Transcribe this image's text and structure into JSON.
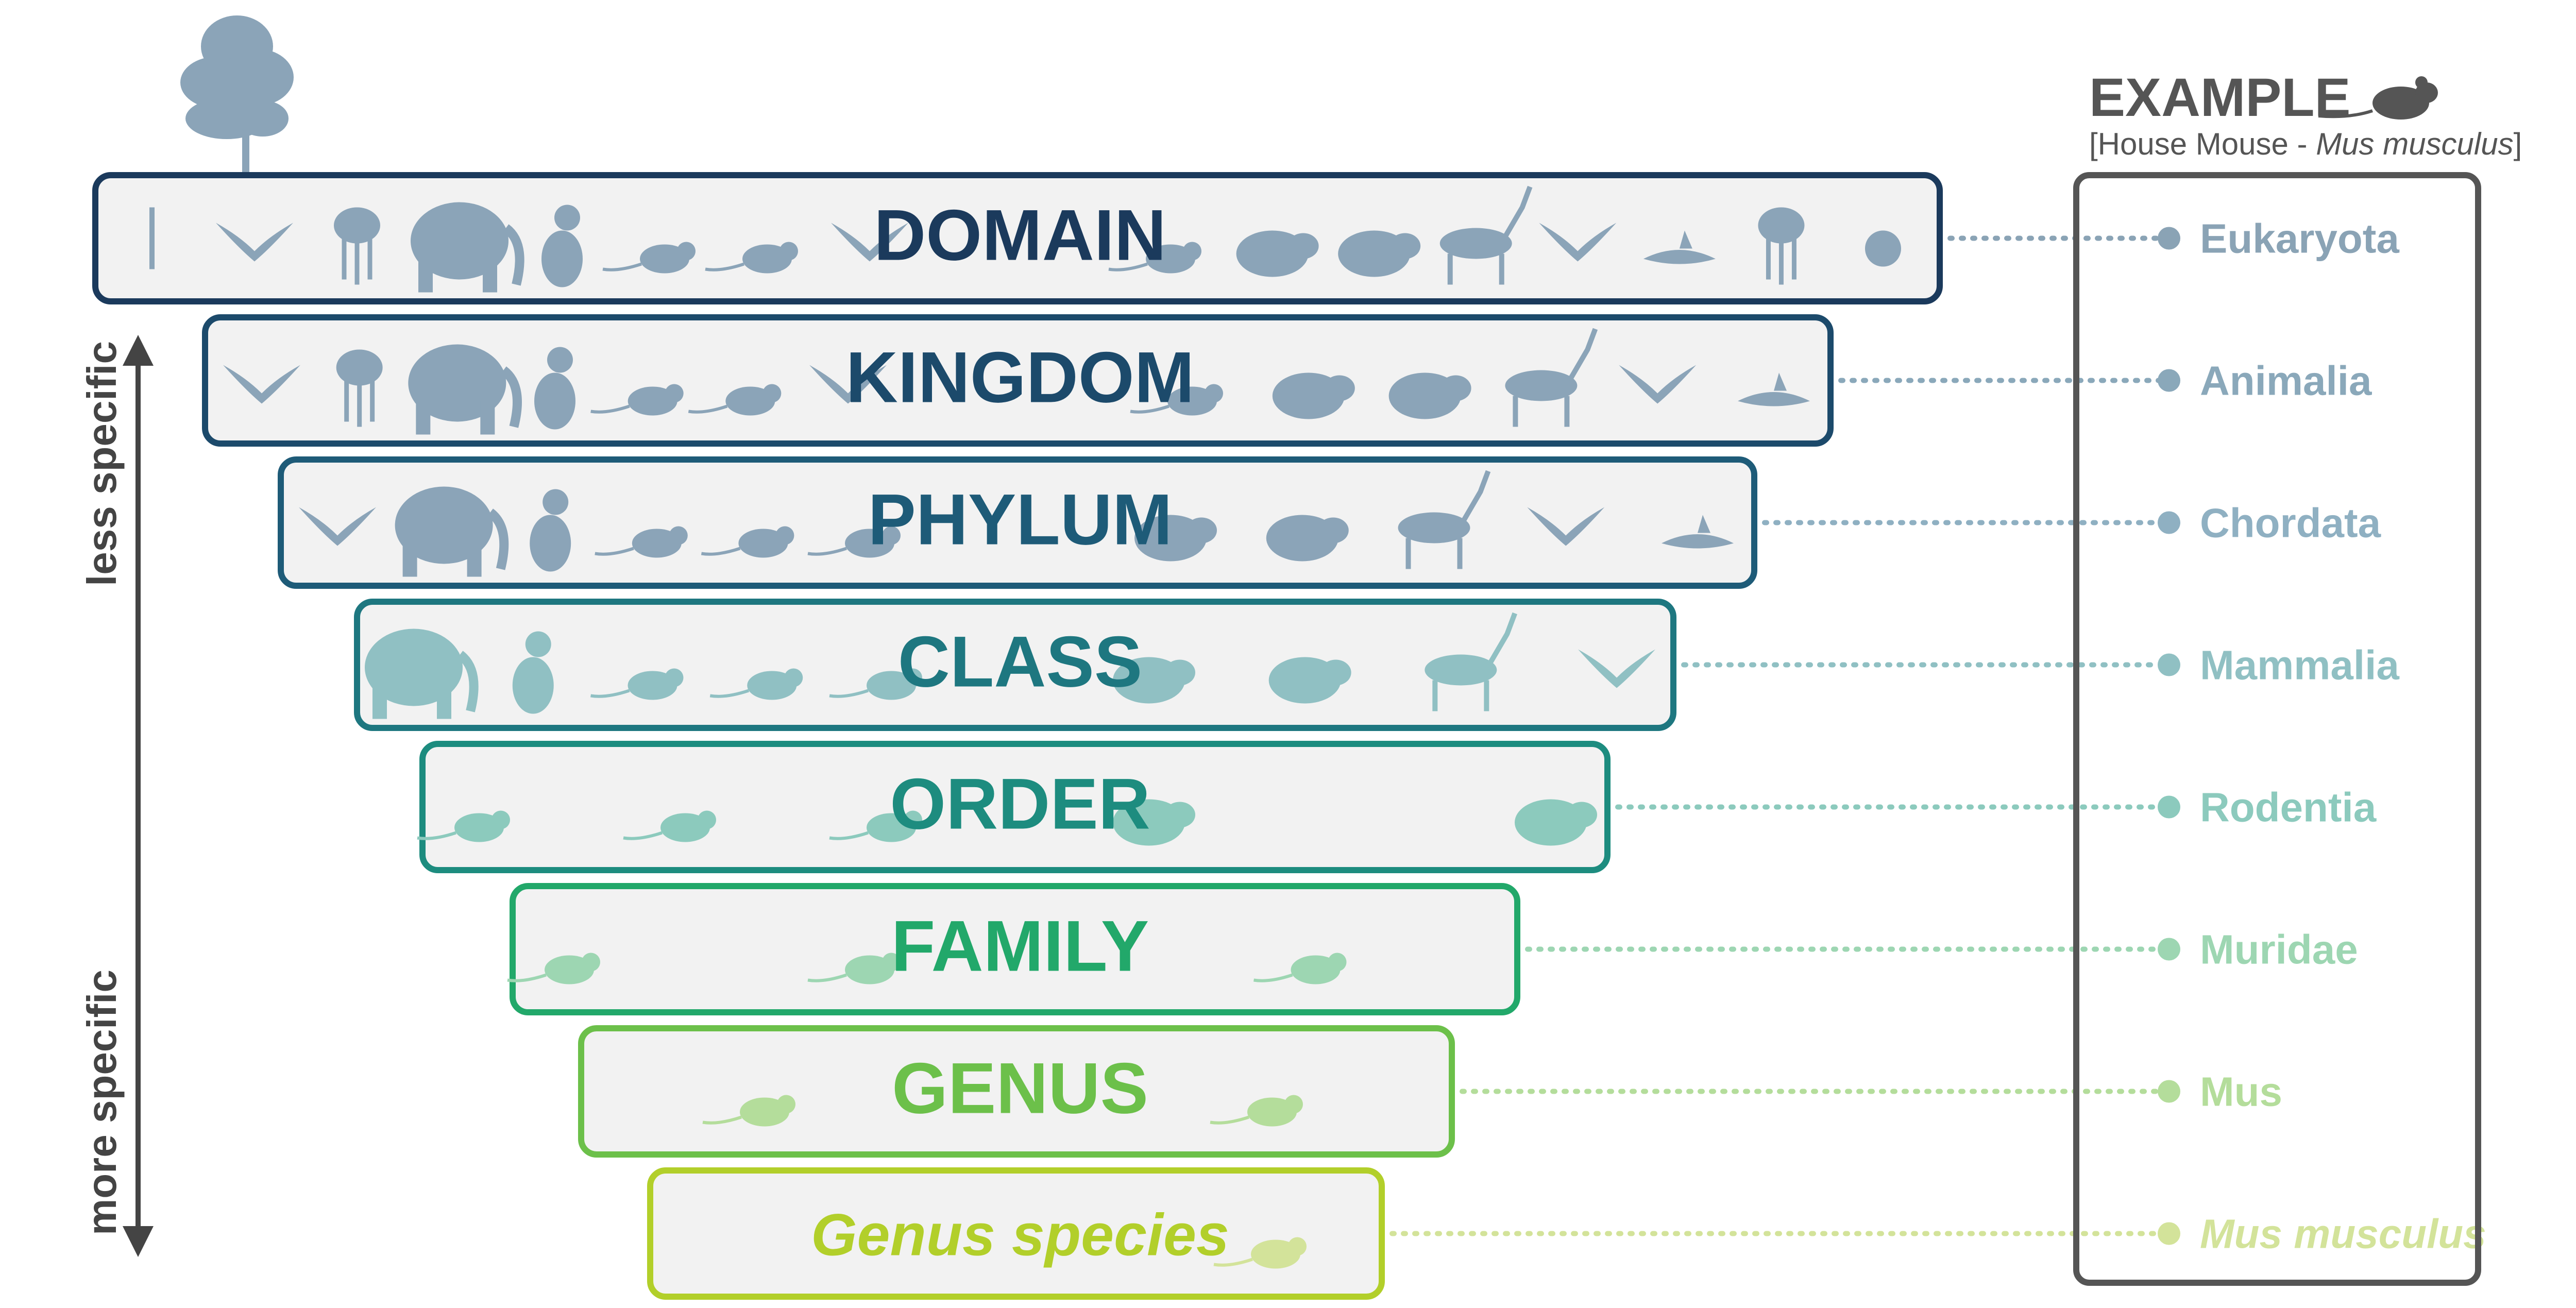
{
  "ranks": [
    {
      "label": "DOMAIN",
      "example": "Eukaryota",
      "color": "#1b3a5c",
      "example_color": "#8aa3b5",
      "italic": false,
      "icons": [
        "tree-icon",
        "bird-icon",
        "jellyfish-icon",
        "elephant-icon",
        "cat-icon",
        "rat-icon",
        "rat-icon",
        "butterfly-icon",
        "mouse-icon",
        "capybara-icon",
        "hedgehog-icon",
        "antelope-icon",
        "bat-icon",
        "shark-icon",
        "mushroom-icon",
        "cell-icon"
      ]
    },
    {
      "label": "KINGDOM",
      "example": "Animalia",
      "color": "#1c4a6b",
      "example_color": "#8aa8ba",
      "italic": false,
      "icons": [
        "bird-icon",
        "jellyfish-icon",
        "elephant-icon",
        "cat-icon",
        "rat-icon",
        "rat-icon",
        "butterfly-icon",
        "mouse-icon",
        "capybara-icon",
        "hedgehog-icon",
        "antelope-icon",
        "bat-icon",
        "shark-icon"
      ]
    },
    {
      "label": "PHYLUM",
      "example": "Chordata",
      "color": "#1e5b78",
      "example_color": "#8fb0c2",
      "italic": false,
      "icons": [
        "bird-icon",
        "elephant-icon",
        "cat-icon",
        "rat-icon",
        "rat-icon",
        "mouse-icon",
        "capybara-icon",
        "hedgehog-icon",
        "antelope-icon",
        "bat-icon",
        "shark-icon"
      ]
    },
    {
      "label": "CLASS",
      "example": "Mammalia",
      "color": "#1e7780",
      "example_color": "#90c0c3",
      "italic": false,
      "icons": [
        "elephant-icon",
        "cat-icon",
        "rat-icon",
        "rat-icon",
        "mouse-icon",
        "capybara-icon",
        "hedgehog-icon",
        "antelope-icon",
        "bat-icon"
      ]
    },
    {
      "label": "ORDER",
      "example": "Rodentia",
      "color": "#1d8c7f",
      "example_color": "#8ccabd",
      "italic": false,
      "icons": [
        "rat-icon",
        "rat-icon",
        "mouse-icon",
        "capybara-icon",
        "hedgehog-icon"
      ]
    },
    {
      "label": "FAMILY",
      "example": "Muridae",
      "color": "#22a86a",
      "example_color": "#9dd6b2",
      "italic": false,
      "icons": [
        "rat-icon",
        "rat-icon",
        "mouse-icon"
      ]
    },
    {
      "label": "GENUS",
      "example": "Mus",
      "color": "#6cc04a",
      "example_color": "#b4dd9b",
      "italic": false,
      "icons": [
        "rat-icon",
        "mouse-icon"
      ]
    },
    {
      "label": "Genus species",
      "example": "Mus musculus",
      "color": "#b2cf2a",
      "example_color": "#d3e39a",
      "italic": true,
      "icons": [
        "mouse-icon"
      ]
    }
  ],
  "example_header": {
    "title": "EXAMPLE",
    "subtitle_prefix": "[House Mouse - ",
    "subtitle_italic": "Mus musculus",
    "subtitle_suffix": "]",
    "icon": "mouse-icon"
  },
  "axis": {
    "top_label": "less specific",
    "bottom_label": "more specific"
  },
  "colors": {
    "box_fill": "#f2f2f2",
    "silhouette_blue": "#8ba4b8",
    "example_box": "#555555",
    "axis": "#444444"
  }
}
